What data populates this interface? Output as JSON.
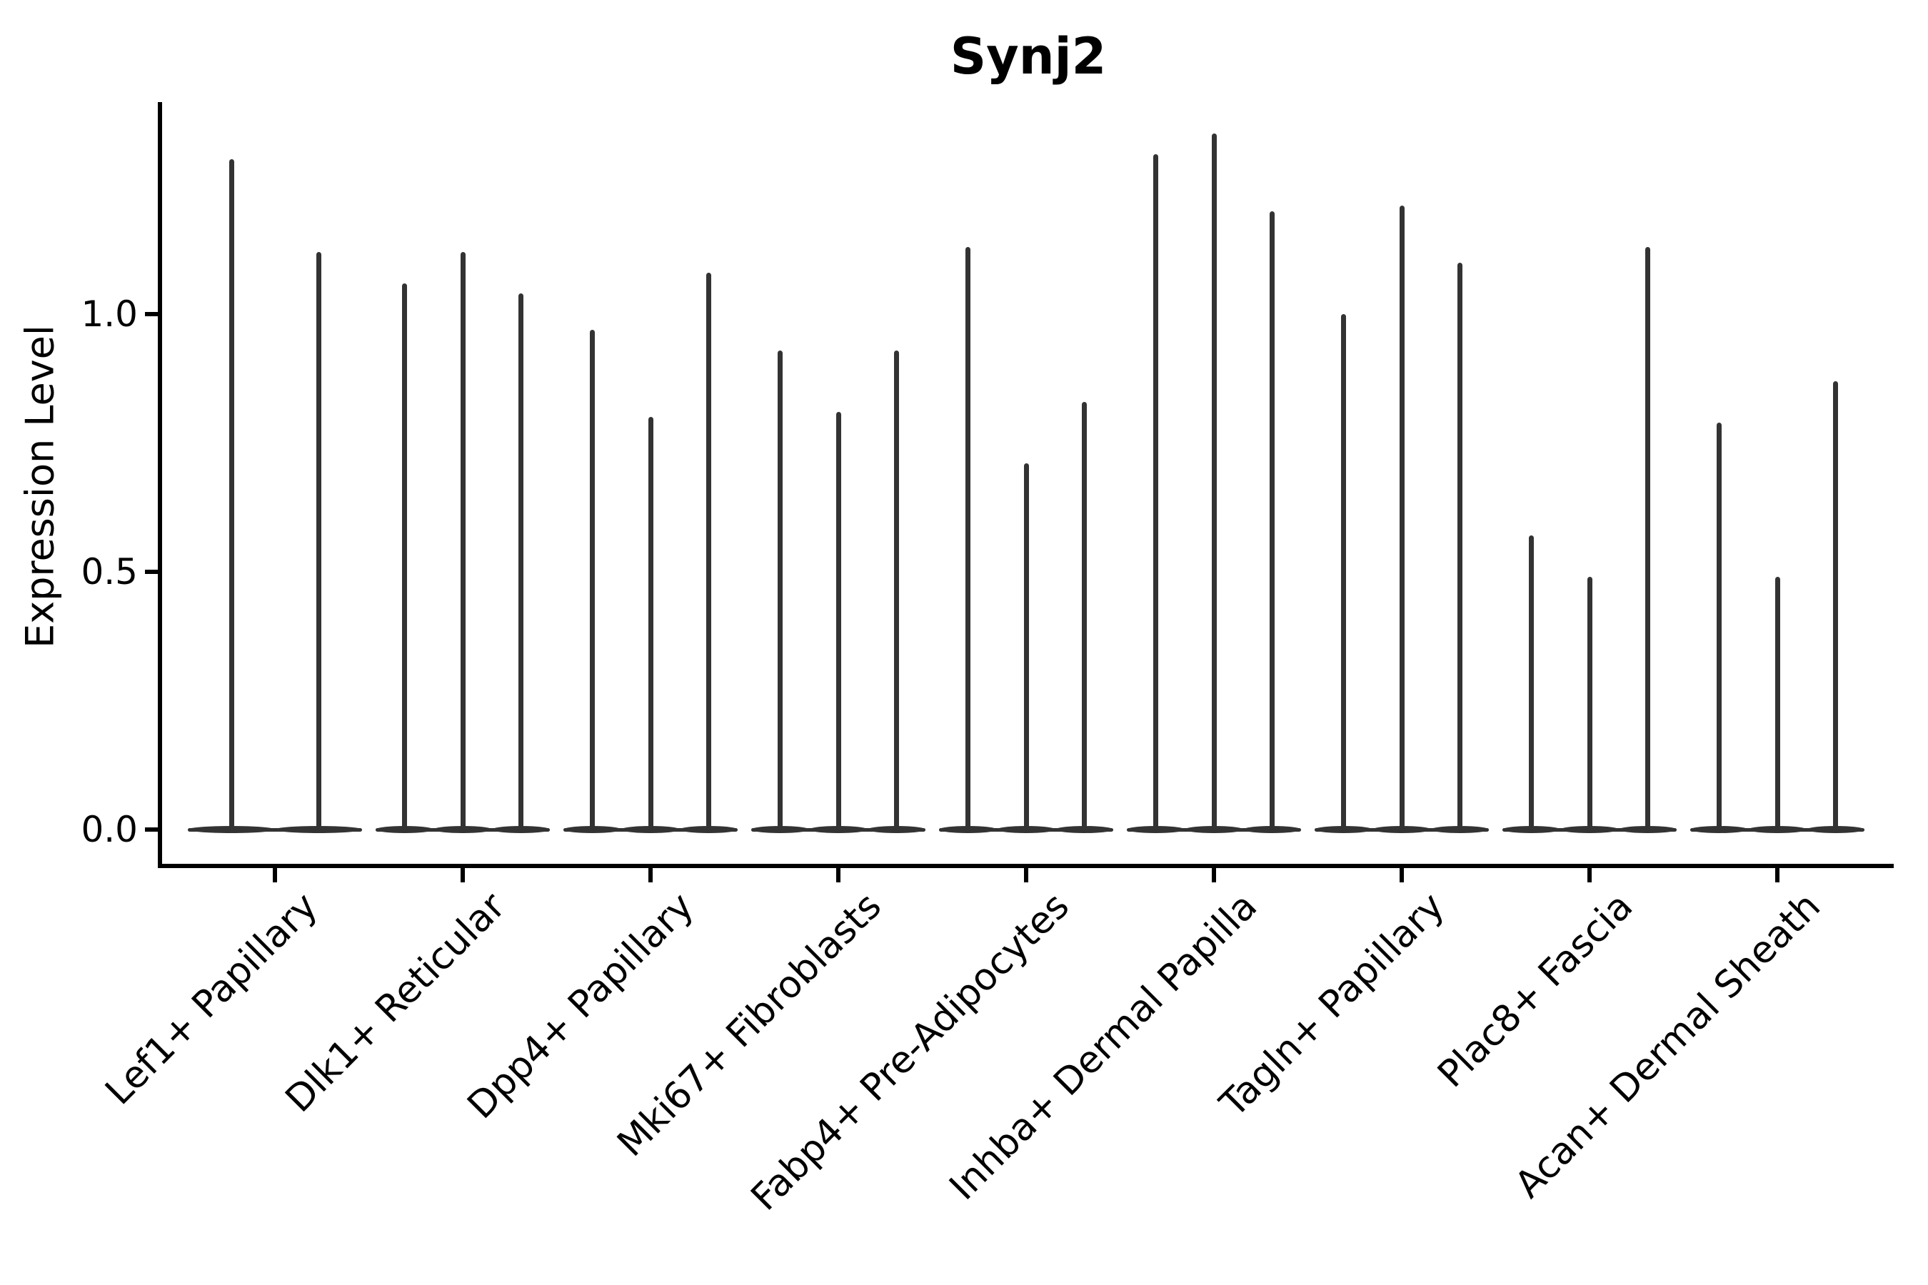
{
  "chart_data": {
    "type": "violin",
    "title": "Synj2",
    "xlabel": "",
    "ylabel": "Expression Level",
    "ylim": [
      -0.07,
      1.41
    ],
    "yticks": [
      0.0,
      0.5,
      1.0
    ],
    "ytick_labels": [
      "0.0",
      "0.5",
      "1.0"
    ],
    "grid": false,
    "legend_position": "none",
    "violin_color": "#333333",
    "axis_color": "#000000",
    "baseline_value": 0.0,
    "categories": [
      "Lef1+ Papillary",
      "Dlk1+ Reticular",
      "Dpp4+ Papillary",
      "Mki67+ Fibroblasts",
      "Fabp4+ Pre-Adipocytes",
      "Inhba+ Dermal Papilla",
      "Tagln+ Papillary",
      "Plac8+ Fascia",
      "Acan+ Dermal Sheath"
    ],
    "series": [
      {
        "category": "Lef1+ Papillary",
        "violin_peak_values": [
          1.3,
          1.12
        ]
      },
      {
        "category": "Dlk1+ Reticular",
        "violin_peak_values": [
          1.06,
          1.12,
          1.04
        ]
      },
      {
        "category": "Dpp4+ Papillary",
        "violin_peak_values": [
          0.97,
          0.8,
          1.08
        ]
      },
      {
        "category": "Mki67+ Fibroblasts",
        "violin_peak_values": [
          0.93,
          0.81,
          0.93
        ]
      },
      {
        "category": "Fabp4+ Pre-Adipocytes",
        "violin_peak_values": [
          1.13,
          0.71,
          0.83
        ]
      },
      {
        "category": "Inhba+ Dermal Papilla",
        "violin_peak_values": [
          1.31,
          1.35,
          1.2
        ]
      },
      {
        "category": "Tagln+ Papillary",
        "violin_peak_values": [
          1.0,
          1.21,
          1.1
        ]
      },
      {
        "category": "Plac8+ Fascia",
        "violin_peak_values": [
          0.57,
          0.49,
          1.13
        ]
      },
      {
        "category": "Acan+ Dermal Sheath",
        "violin_peak_values": [
          0.79,
          0.49,
          0.87
        ]
      }
    ]
  }
}
